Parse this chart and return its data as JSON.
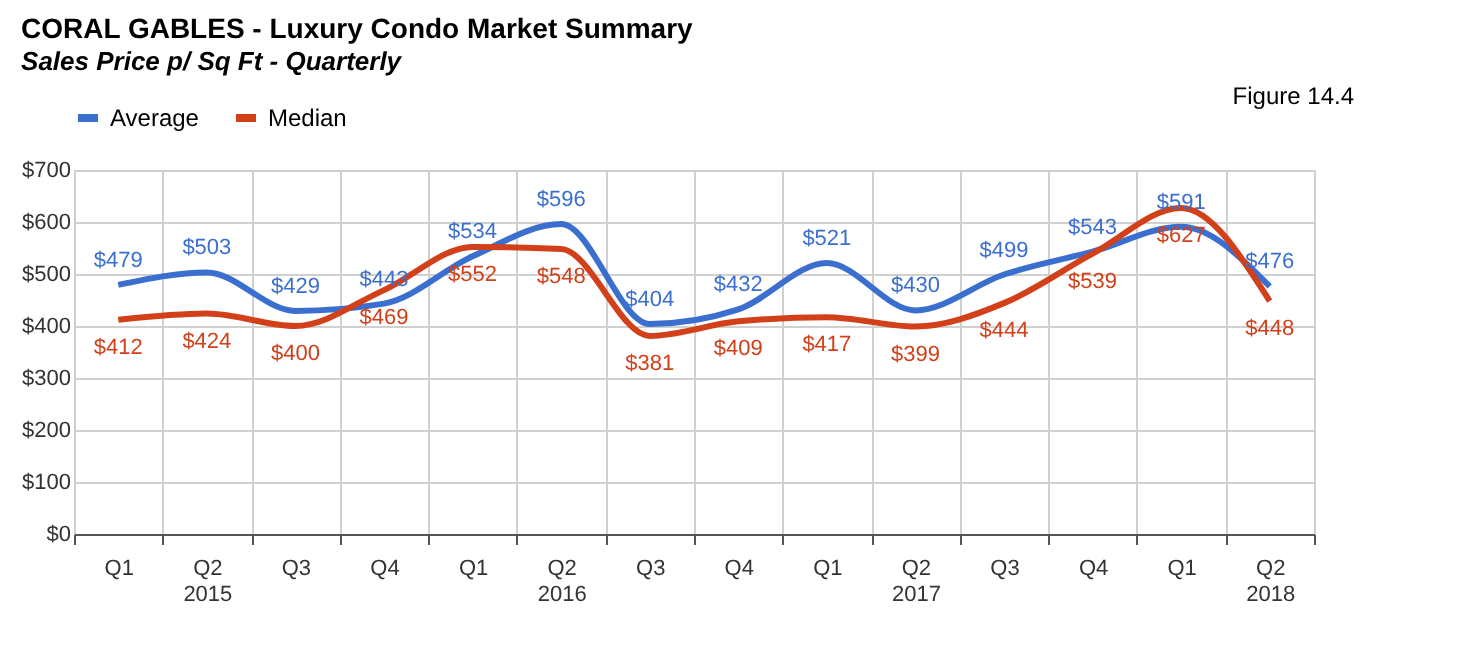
{
  "chart_data": {
    "type": "line",
    "title": "CORAL GABLES - Luxury Condo Market Summary",
    "subtitle": "Sales Price p/ Sq Ft - Quarterly",
    "annotations": [
      "Figure 14.4"
    ],
    "categories": [
      "Q1",
      "Q2\n2015",
      "Q3",
      "Q4",
      "Q1",
      "Q2\n2016",
      "Q3",
      "Q4",
      "Q1",
      "Q2\n2017",
      "Q3",
      "Q4",
      "Q1",
      "Q2\n2018"
    ],
    "series": [
      {
        "name": "Average",
        "color": "#3b6fcf",
        "values": [
          479,
          503,
          429,
          443,
          534,
          596,
          404,
          432,
          521,
          430,
          499,
          543,
          591,
          476
        ],
        "value_labels": [
          "$479",
          "$503",
          "$429",
          "$443",
          "$534",
          "$596",
          "$404",
          "$432",
          "$521",
          "$430",
          "$499",
          "$543",
          "$591",
          "$476"
        ]
      },
      {
        "name": "Median",
        "color": "#d2401a",
        "values": [
          412,
          424,
          400,
          469,
          552,
          548,
          381,
          409,
          417,
          399,
          444,
          539,
          627,
          448
        ],
        "value_labels": [
          "$412",
          "$424",
          "$400",
          "$469",
          "$552",
          "$548",
          "$381",
          "$409",
          "$417",
          "$399",
          "$444",
          "$539",
          "$627",
          "$448"
        ]
      }
    ],
    "ylim": [
      0,
      700
    ],
    "yticks": [
      {
        "value": 0,
        "label": "$0"
      },
      {
        "value": 100,
        "label": "$100"
      },
      {
        "value": 200,
        "label": "$200"
      },
      {
        "value": 300,
        "label": "$300"
      },
      {
        "value": 400,
        "label": "$400"
      },
      {
        "value": 500,
        "label": "$500"
      },
      {
        "value": 600,
        "label": "$600"
      },
      {
        "value": 700,
        "label": "$700"
      }
    ],
    "grid": true,
    "legend": "top",
    "marker": "none",
    "line_style": "solid"
  }
}
